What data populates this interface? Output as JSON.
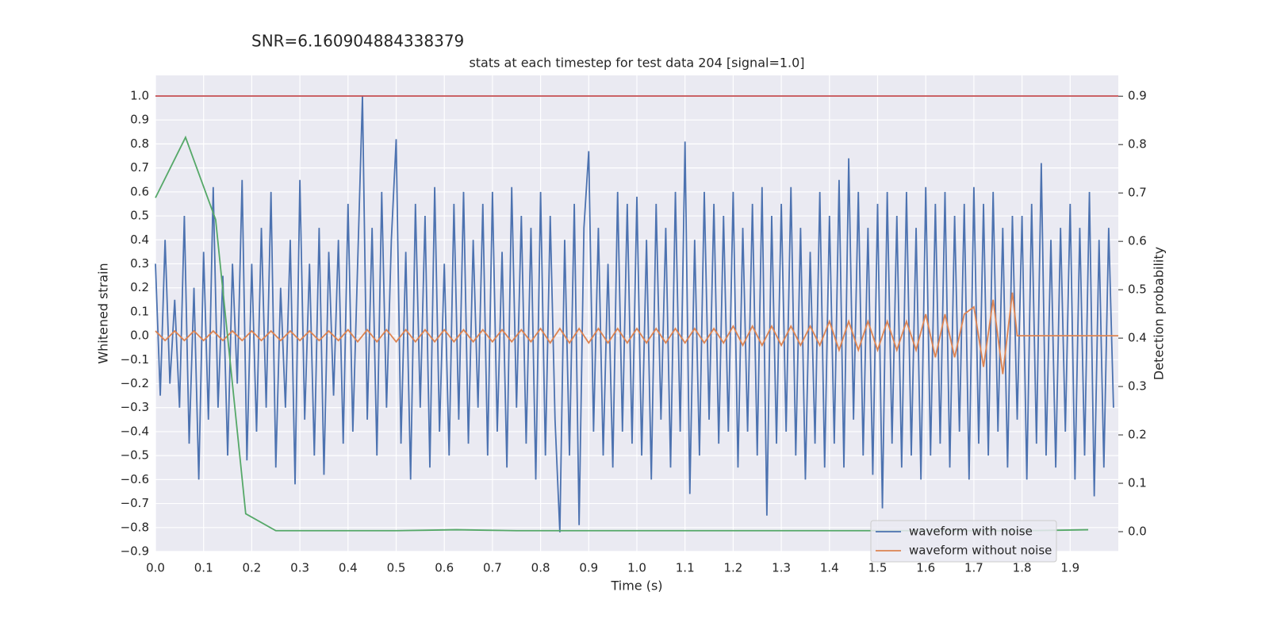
{
  "chart_data": {
    "type": "line",
    "suptitle": "SNR=6.160904884338379",
    "title": "stats at each timestep for test data 204 [signal=1.0]",
    "xlabel": "Time (s)",
    "ylabel": "Whitened strain",
    "y2label": "Detection probability",
    "xlim": [
      0,
      2.0
    ],
    "ylim": [
      -0.9,
      1.086
    ],
    "y2lim": [
      -0.041,
      0.943
    ],
    "grid": true,
    "legend": "lower right",
    "xticks": [
      {
        "value": 0,
        "label": "0.0"
      },
      {
        "value": 0.1,
        "label": "0.1"
      },
      {
        "value": 0.2,
        "label": "0.2"
      },
      {
        "value": 0.3,
        "label": "0.3"
      },
      {
        "value": 0.4,
        "label": "0.4"
      },
      {
        "value": 0.5,
        "label": "0.5"
      },
      {
        "value": 0.6,
        "label": "0.6"
      },
      {
        "value": 0.7,
        "label": "0.7"
      },
      {
        "value": 0.8,
        "label": "0.8"
      },
      {
        "value": 0.9,
        "label": "0.9"
      },
      {
        "value": 1.0,
        "label": "1.0"
      },
      {
        "value": 1.1,
        "label": "1.1"
      },
      {
        "value": 1.2,
        "label": "1.2"
      },
      {
        "value": 1.3,
        "label": "1.3"
      },
      {
        "value": 1.4,
        "label": "1.4"
      },
      {
        "value": 1.5,
        "label": "1.5"
      },
      {
        "value": 1.6,
        "label": "1.6"
      },
      {
        "value": 1.7,
        "label": "1.7"
      },
      {
        "value": 1.8,
        "label": "1.8"
      },
      {
        "value": 1.9,
        "label": "1.9"
      }
    ],
    "yticks": [
      {
        "value": -0.9,
        "label": "−0.9"
      },
      {
        "value": -0.8,
        "label": "−0.8"
      },
      {
        "value": -0.7,
        "label": "−0.7"
      },
      {
        "value": -0.6,
        "label": "−0.6"
      },
      {
        "value": -0.5,
        "label": "−0.5"
      },
      {
        "value": -0.4,
        "label": "−0.4"
      },
      {
        "value": -0.3,
        "label": "−0.3"
      },
      {
        "value": -0.2,
        "label": "−0.2"
      },
      {
        "value": -0.1,
        "label": "−0.1"
      },
      {
        "value": 0,
        "label": "0.0"
      },
      {
        "value": 0.1,
        "label": "0.1"
      },
      {
        "value": 0.2,
        "label": "0.2"
      },
      {
        "value": 0.3,
        "label": "0.3"
      },
      {
        "value": 0.4,
        "label": "0.4"
      },
      {
        "value": 0.5,
        "label": "0.5"
      },
      {
        "value": 0.6,
        "label": "0.6"
      },
      {
        "value": 0.7,
        "label": "0.7"
      },
      {
        "value": 0.8,
        "label": "0.8"
      },
      {
        "value": 0.9,
        "label": "0.9"
      },
      {
        "value": 1.0,
        "label": "1.0"
      }
    ],
    "y2ticks": [
      {
        "value": 0,
        "label": "0.0"
      },
      {
        "value": 0.1,
        "label": "0.1"
      },
      {
        "value": 0.2,
        "label": "0.2"
      },
      {
        "value": 0.3,
        "label": "0.3"
      },
      {
        "value": 0.4,
        "label": "0.4"
      },
      {
        "value": 0.5,
        "label": "0.5"
      },
      {
        "value": 0.6,
        "label": "0.6"
      },
      {
        "value": 0.7,
        "label": "0.7"
      },
      {
        "value": 0.8,
        "label": "0.8"
      },
      {
        "value": 0.9,
        "label": "0.9"
      }
    ],
    "series": [
      {
        "name": "waveform with noise",
        "color": "#4c72b0",
        "x": [
          0,
          0.01,
          0.02,
          0.03,
          0.04,
          0.05,
          0.06,
          0.07,
          0.08,
          0.09,
          0.1,
          0.11,
          0.12,
          0.13,
          0.14,
          0.15,
          0.16,
          0.17,
          0.18,
          0.19,
          0.2,
          0.21,
          0.22,
          0.23,
          0.24,
          0.25,
          0.26,
          0.27,
          0.28,
          0.29,
          0.3,
          0.31,
          0.32,
          0.33,
          0.34,
          0.35,
          0.36,
          0.37,
          0.38,
          0.39,
          0.4,
          0.41,
          0.42,
          0.43,
          0.44,
          0.45,
          0.46,
          0.47,
          0.48,
          0.49,
          0.5,
          0.51,
          0.52,
          0.53,
          0.54,
          0.55,
          0.56,
          0.57,
          0.58,
          0.59,
          0.6,
          0.61,
          0.62,
          0.63,
          0.64,
          0.65,
          0.66,
          0.67,
          0.68,
          0.69,
          0.7,
          0.71,
          0.72,
          0.73,
          0.74,
          0.75,
          0.76,
          0.77,
          0.78,
          0.79,
          0.8,
          0.81,
          0.82,
          0.83,
          0.84,
          0.85,
          0.86,
          0.87,
          0.88,
          0.89,
          0.9,
          0.91,
          0.92,
          0.93,
          0.94,
          0.95,
          0.96,
          0.97,
          0.98,
          0.99,
          1.0,
          1.01,
          1.02,
          1.03,
          1.04,
          1.05,
          1.06,
          1.07,
          1.08,
          1.09,
          1.1,
          1.11,
          1.12,
          1.13,
          1.14,
          1.15,
          1.16,
          1.17,
          1.18,
          1.19,
          1.2,
          1.21,
          1.22,
          1.23,
          1.24,
          1.25,
          1.26,
          1.27,
          1.28,
          1.29,
          1.3,
          1.31,
          1.32,
          1.33,
          1.34,
          1.35,
          1.36,
          1.37,
          1.38,
          1.39,
          1.4,
          1.41,
          1.42,
          1.43,
          1.44,
          1.45,
          1.46,
          1.47,
          1.48,
          1.49,
          1.5,
          1.51,
          1.52,
          1.53,
          1.54,
          1.55,
          1.56,
          1.57,
          1.58,
          1.59,
          1.6,
          1.61,
          1.62,
          1.63,
          1.64,
          1.65,
          1.66,
          1.67,
          1.68,
          1.69,
          1.7,
          1.71,
          1.72,
          1.73,
          1.74,
          1.75,
          1.76,
          1.77,
          1.78,
          1.79,
          1.8,
          1.81,
          1.82,
          1.83,
          1.84,
          1.85,
          1.86,
          1.87,
          1.88,
          1.89,
          1.9,
          1.91,
          1.92,
          1.93,
          1.94,
          1.95,
          1.96,
          1.97,
          1.98,
          1.99
        ],
        "values": [
          0.3,
          -0.25,
          0.4,
          -0.2,
          0.15,
          -0.3,
          0.5,
          -0.45,
          0.2,
          -0.6,
          0.35,
          -0.35,
          0.62,
          -0.3,
          0.25,
          -0.5,
          0.3,
          -0.2,
          0.65,
          -0.52,
          0.3,
          -0.4,
          0.45,
          -0.3,
          0.6,
          -0.55,
          0.2,
          -0.3,
          0.4,
          -0.62,
          0.65,
          -0.35,
          0.3,
          -0.5,
          0.45,
          -0.58,
          0.35,
          -0.25,
          0.4,
          -0.45,
          0.55,
          -0.4,
          0.3,
          1.0,
          -0.35,
          0.45,
          -0.5,
          0.6,
          -0.3,
          0.4,
          0.82,
          -0.45,
          0.35,
          -0.6,
          0.55,
          -0.3,
          0.5,
          -0.55,
          0.62,
          -0.4,
          0.3,
          -0.5,
          0.55,
          -0.35,
          0.6,
          -0.45,
          0.4,
          -0.3,
          0.55,
          -0.5,
          0.6,
          -0.4,
          0.35,
          -0.55,
          0.62,
          -0.3,
          0.5,
          -0.45,
          0.45,
          -0.6,
          0.6,
          -0.5,
          0.5,
          -0.35,
          -0.82,
          0.4,
          -0.5,
          0.55,
          -0.79,
          0.45,
          0.77,
          -0.4,
          0.45,
          -0.5,
          0.3,
          -0.55,
          0.6,
          -0.4,
          0.55,
          -0.45,
          0.58,
          -0.5,
          0.4,
          -0.6,
          0.55,
          -0.35,
          0.45,
          -0.55,
          0.6,
          -0.4,
          0.81,
          -0.66,
          0.4,
          -0.5,
          0.6,
          -0.35,
          0.55,
          -0.45,
          0.5,
          -0.4,
          0.6,
          -0.55,
          0.45,
          -0.4,
          0.55,
          -0.5,
          0.62,
          -0.75,
          0.5,
          -0.45,
          0.55,
          -0.4,
          0.62,
          -0.5,
          0.45,
          -0.6,
          0.35,
          -0.45,
          0.6,
          -0.55,
          0.5,
          -0.45,
          0.65,
          -0.55,
          0.74,
          -0.35,
          0.6,
          -0.5,
          0.45,
          -0.58,
          0.55,
          -0.72,
          0.6,
          -0.45,
          0.5,
          -0.55,
          0.6,
          -0.5,
          0.45,
          -0.6,
          0.62,
          -0.5,
          0.55,
          -0.45,
          0.6,
          -0.55,
          0.5,
          -0.4,
          0.55,
          -0.6,
          0.62,
          -0.45,
          0.55,
          -0.5,
          0.6,
          -0.4,
          0.45,
          -0.55,
          0.5,
          -0.35,
          0.5,
          -0.6,
          0.55,
          -0.45,
          0.72,
          -0.5,
          0.4,
          -0.55,
          0.45,
          -0.4,
          0.55,
          -0.6,
          0.45,
          -0.5,
          0.6,
          -0.67,
          0.4,
          -0.55,
          0.45,
          -0.3
        ]
      },
      {
        "name": "waveform without noise",
        "color": "#dd8452",
        "x": [
          0,
          0.02,
          0.04,
          0.06,
          0.08,
          0.1,
          0.12,
          0.14,
          0.16,
          0.18,
          0.2,
          0.22,
          0.24,
          0.26,
          0.28,
          0.3,
          0.32,
          0.34,
          0.36,
          0.38,
          0.4,
          0.42,
          0.44,
          0.46,
          0.48,
          0.5,
          0.52,
          0.54,
          0.56,
          0.58,
          0.6,
          0.62,
          0.64,
          0.66,
          0.68,
          0.7,
          0.72,
          0.74,
          0.76,
          0.78,
          0.8,
          0.82,
          0.84,
          0.86,
          0.88,
          0.9,
          0.92,
          0.94,
          0.96,
          0.98,
          1.0,
          1.02,
          1.04,
          1.06,
          1.08,
          1.1,
          1.12,
          1.14,
          1.16,
          1.18,
          1.2,
          1.22,
          1.24,
          1.26,
          1.28,
          1.3,
          1.32,
          1.34,
          1.36,
          1.38,
          1.4,
          1.42,
          1.44,
          1.46,
          1.48,
          1.5,
          1.52,
          1.54,
          1.56,
          1.58,
          1.6,
          1.62,
          1.64,
          1.66,
          1.68,
          1.7,
          1.72,
          1.74,
          1.76,
          1.78,
          1.79,
          2.0
        ],
        "values": [
          0.02,
          -0.02,
          0.02,
          -0.02,
          0.02,
          -0.02,
          0.02,
          -0.02,
          0.02,
          -0.02,
          0.02,
          -0.02,
          0.02,
          -0.02,
          0.02,
          -0.02,
          0.02,
          -0.02,
          0.02,
          -0.02,
          0.025,
          -0.025,
          0.025,
          -0.025,
          0.025,
          -0.025,
          0.025,
          -0.025,
          0.025,
          -0.025,
          0.025,
          -0.025,
          0.025,
          -0.025,
          0.025,
          -0.025,
          0.025,
          -0.025,
          0.025,
          -0.025,
          0.03,
          -0.03,
          0.03,
          -0.03,
          0.03,
          -0.03,
          0.03,
          -0.03,
          0.03,
          -0.03,
          0.03,
          -0.03,
          0.03,
          -0.03,
          0.03,
          -0.03,
          0.03,
          -0.03,
          0.03,
          -0.03,
          0.04,
          -0.04,
          0.04,
          -0.04,
          0.04,
          -0.04,
          0.04,
          -0.04,
          0.04,
          -0.04,
          0.06,
          -0.06,
          0.06,
          -0.06,
          0.06,
          -0.06,
          0.06,
          -0.06,
          0.06,
          -0.06,
          0.09,
          -0.09,
          0.09,
          -0.09,
          0.09,
          0.12,
          -0.13,
          0.15,
          -0.16,
          0.18,
          0,
          0
        ]
      },
      {
        "color": "#55a868",
        "axis": "y2",
        "x": [
          0,
          0.0625,
          0.125,
          0.1875,
          0.25,
          0.3125,
          0.375,
          0.4375,
          0.5,
          0.5625,
          0.625,
          0.6875,
          0.75,
          0.8125,
          0.875,
          0.9375,
          1.0,
          1.0625,
          1.125,
          1.1875,
          1.25,
          1.3125,
          1.375,
          1.4375,
          1.5,
          1.5625,
          1.625,
          1.6875,
          1.75,
          1.8125,
          1.875,
          1.9375
        ],
        "values": [
          0.69,
          0.815,
          0.645,
          0.037,
          0.002,
          0.002,
          0.002,
          0.002,
          0.002,
          0.003,
          0.004,
          0.003,
          0.002,
          0.002,
          0.002,
          0.002,
          0.002,
          0.002,
          0.002,
          0.002,
          0.002,
          0.002,
          0.002,
          0.002,
          0.002,
          0.002,
          0.002,
          0.002,
          0.002,
          0.002,
          0.003,
          0.004
        ]
      },
      {
        "color": "#c44e52",
        "x": [
          0,
          2.0
        ],
        "values": [
          1.0,
          1.0
        ]
      }
    ]
  }
}
